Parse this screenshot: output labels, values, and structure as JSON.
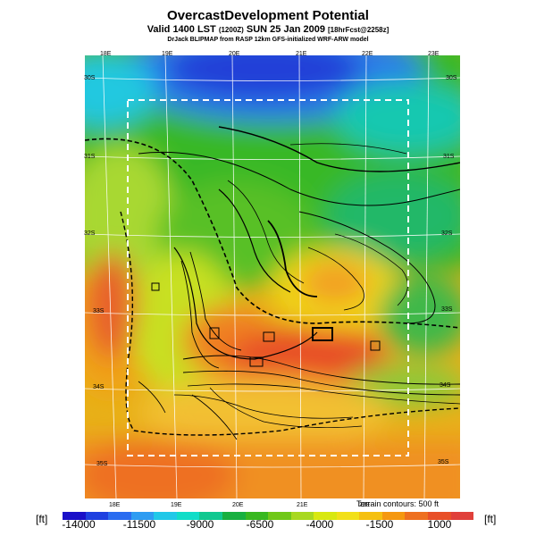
{
  "title": "OvercastDevelopment Potential",
  "valid": {
    "prefix": "Valid 1400 LST",
    "zulu": "(1200Z)",
    "date": "SUN 25 Jan 2009",
    "forecast": "[18hrFcst@2258z]"
  },
  "credit": "DrJack BLIPMAP from RASP 12km GFS-initialized WRF-ARW model",
  "terrain_note": "Terrain contours: 500 ft",
  "units": {
    "left": "[ft]",
    "right": "[ft]"
  },
  "axes": {
    "top_lon": [
      "18E",
      "19E",
      "20E",
      "21E",
      "22E",
      "23E"
    ],
    "bottom_lon": [
      "18E",
      "19E",
      "20E",
      "21E",
      "22E"
    ],
    "left_lat": [
      "30S",
      "31S",
      "32S",
      "33S",
      "34S",
      "35S"
    ],
    "right_lat": [
      "30S",
      "31S",
      "32S",
      "33S",
      "34S",
      "35S"
    ]
  },
  "colorbar": {
    "labels": [
      "-14000",
      "-11500",
      "-9000",
      "-6500",
      "-4000",
      "-1500",
      "1000"
    ],
    "colors": [
      "#1a10c8",
      "#1e40e0",
      "#2a6cf0",
      "#2e9cf2",
      "#20c8e8",
      "#10ddc8",
      "#10c890",
      "#18b040",
      "#38b820",
      "#70c818",
      "#a8d820",
      "#d8e810",
      "#f2e018",
      "#f5c010",
      "#f59810",
      "#ee7020",
      "#e85028",
      "#e0403a"
    ]
  }
}
